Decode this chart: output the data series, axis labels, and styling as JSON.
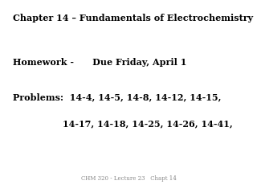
{
  "background_color": "#ffffff",
  "title_line": "Chapter 14 – Fundamentals of Electrochemistry",
  "homework_line": "Homework -      Due Friday, April 1",
  "problems_line1": "Problems:  14-4, 14-5, 14-8, 14-12, 14-15,",
  "problems_line2": "                14-17, 14-18, 14-25, 14-26, 14-41,",
  "footer": "CHM 320 - Lecture 23   Chapt 14",
  "title_fontsize": 8.0,
  "body_fontsize": 8.0,
  "footer_fontsize": 5.0,
  "text_color": "#000000",
  "footer_color": "#888888"
}
